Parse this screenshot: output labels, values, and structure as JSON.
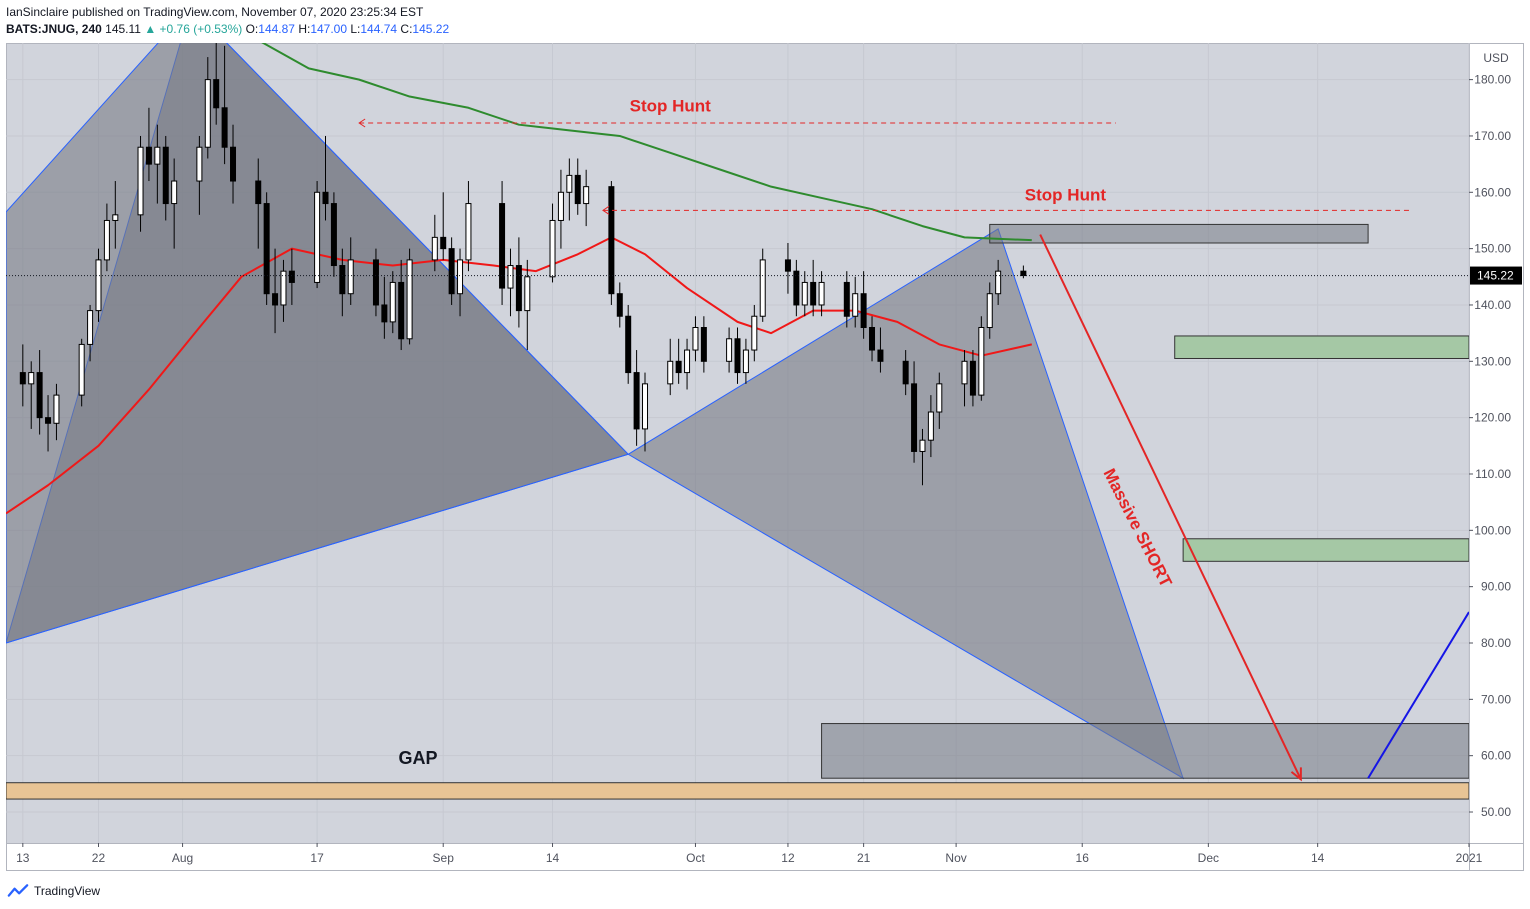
{
  "header": {
    "publisher": "IanSinclaire published on TradingView.com, November 07, 2020 23:25:34 EST",
    "symbol": "BATS:JNUG, 240",
    "last": "145.11",
    "change": "▲ +0.76 (+0.53%)",
    "o_label": "O:",
    "o_value": "144.87",
    "h_label": "H:",
    "h_value": "147.00",
    "l_label": "L:",
    "l_value": "144.74",
    "c_label": "C:",
    "c_value": "145.22"
  },
  "footer": {
    "brand": "TradingView"
  },
  "colors": {
    "background": "#d1d4dc",
    "pattern_fill": "#787b86",
    "pattern_edge": "#2962ff",
    "ma_fast": "#f01818",
    "ma_slow": "#2e8b2e",
    "zone_green": "#a5c8a5",
    "zone_orange": "#e8c495",
    "annotation_red": "#e32626",
    "projection_blue": "#1515e6"
  },
  "chart_data": {
    "type": "candlestick",
    "currency": "USD",
    "ylim": [
      44.5,
      186.5
    ],
    "y_ticks": [
      {
        "value": 180,
        "label": "180.00"
      },
      {
        "value": 170,
        "label": "170.00"
      },
      {
        "value": 160,
        "label": "160.00"
      },
      {
        "value": 150,
        "label": "150.00"
      },
      {
        "value": 140,
        "label": "140.00"
      },
      {
        "value": 130,
        "label": "130.00"
      },
      {
        "value": 120,
        "label": "120.00"
      },
      {
        "value": 110,
        "label": "110.00"
      },
      {
        "value": 100,
        "label": "100.00"
      },
      {
        "value": 90,
        "label": "90.00"
      },
      {
        "value": 80,
        "label": "80.00"
      },
      {
        "value": 70,
        "label": "70.00"
      },
      {
        "value": 60,
        "label": "60.00"
      },
      {
        "value": 50,
        "label": "50.00"
      }
    ],
    "x_domain": [
      "2020-07-11",
      "2021-01-01"
    ],
    "x_ticks": [
      {
        "date": "2020-07-13",
        "label": "13"
      },
      {
        "date": "2020-07-22",
        "label": "22"
      },
      {
        "date": "2020-08-01",
        "label": "Aug"
      },
      {
        "date": "2020-08-17",
        "label": "17"
      },
      {
        "date": "2020-09-01",
        "label": "Sep"
      },
      {
        "date": "2020-09-14",
        "label": "14"
      },
      {
        "date": "2020-10-01",
        "label": "Oct"
      },
      {
        "date": "2020-10-12",
        "label": "12"
      },
      {
        "date": "2020-10-21",
        "label": "21"
      },
      {
        "date": "2020-11-01",
        "label": "Nov"
      },
      {
        "date": "2020-11-16",
        "label": "16"
      },
      {
        "date": "2020-12-01",
        "label": "Dec"
      },
      {
        "date": "2020-12-14",
        "label": "14"
      },
      {
        "date": "2021-01-01",
        "label": "2021"
      }
    ],
    "last_price": {
      "value": 145.22,
      "label": "145.22"
    },
    "candles_ohlc": [
      [
        "2020-07-13",
        128,
        133,
        122,
        126
      ],
      [
        "2020-07-14",
        126,
        130,
        118,
        128
      ],
      [
        "2020-07-15",
        128,
        132,
        117,
        120
      ],
      [
        "2020-07-16",
        120,
        124,
        114,
        119
      ],
      [
        "2020-07-17",
        119,
        126,
        116,
        124
      ],
      [
        "2020-07-20",
        124,
        134,
        122,
        133
      ],
      [
        "2020-07-21",
        133,
        140,
        130,
        139
      ],
      [
        "2020-07-22",
        139,
        150,
        137,
        148
      ],
      [
        "2020-07-23",
        148,
        158,
        146,
        155
      ],
      [
        "2020-07-24",
        155,
        162,
        150,
        156
      ],
      [
        "2020-07-27",
        156,
        170,
        153,
        168
      ],
      [
        "2020-07-28",
        168,
        175,
        162,
        165
      ],
      [
        "2020-07-29",
        165,
        172,
        158,
        168
      ],
      [
        "2020-07-30",
        168,
        170,
        155,
        158
      ],
      [
        "2020-07-31",
        158,
        166,
        150,
        162
      ],
      [
        "2020-08-03",
        162,
        170,
        156,
        168
      ],
      [
        "2020-08-04",
        168,
        184,
        166,
        180
      ],
      [
        "2020-08-05",
        180,
        190,
        172,
        175
      ],
      [
        "2020-08-06",
        175,
        186,
        165,
        168
      ],
      [
        "2020-08-07",
        168,
        172,
        158,
        162
      ],
      [
        "2020-08-10",
        162,
        166,
        150,
        158
      ],
      [
        "2020-08-11",
        158,
        160,
        140,
        142
      ],
      [
        "2020-08-12",
        142,
        150,
        135,
        140
      ],
      [
        "2020-08-13",
        140,
        148,
        137,
        146
      ],
      [
        "2020-08-14",
        146,
        150,
        140,
        144
      ],
      [
        "2020-08-17",
        144,
        162,
        143,
        160
      ],
      [
        "2020-08-18",
        160,
        170,
        155,
        158
      ],
      [
        "2020-08-19",
        158,
        160,
        145,
        147
      ],
      [
        "2020-08-20",
        147,
        150,
        138,
        142
      ],
      [
        "2020-08-21",
        142,
        152,
        140,
        148
      ],
      [
        "2020-08-24",
        148,
        150,
        138,
        140
      ],
      [
        "2020-08-25",
        140,
        145,
        134,
        137
      ],
      [
        "2020-08-26",
        137,
        146,
        135,
        144
      ],
      [
        "2020-08-27",
        144,
        148,
        132,
        134
      ],
      [
        "2020-08-28",
        134,
        150,
        133,
        148
      ],
      [
        "2020-08-31",
        148,
        156,
        146,
        152
      ],
      [
        "2020-09-01",
        152,
        160,
        148,
        150
      ],
      [
        "2020-09-02",
        150,
        152,
        140,
        142
      ],
      [
        "2020-09-03",
        142,
        150,
        138,
        148
      ],
      [
        "2020-09-04",
        148,
        162,
        146,
        158
      ],
      [
        "2020-09-08",
        158,
        162,
        140,
        143
      ],
      [
        "2020-09-09",
        143,
        150,
        138,
        147
      ],
      [
        "2020-09-10",
        147,
        152,
        136,
        139
      ],
      [
        "2020-09-11",
        139,
        148,
        132,
        145
      ],
      [
        "2020-09-14",
        145,
        158,
        144,
        155
      ],
      [
        "2020-09-15",
        155,
        164,
        150,
        160
      ],
      [
        "2020-09-16",
        160,
        166,
        155,
        163
      ],
      [
        "2020-09-17",
        163,
        166,
        156,
        158
      ],
      [
        "2020-09-18",
        158,
        164,
        154,
        161
      ],
      [
        "2020-09-21",
        161,
        162,
        140,
        142
      ],
      [
        "2020-09-22",
        142,
        144,
        136,
        138
      ],
      [
        "2020-09-23",
        138,
        140,
        126,
        128
      ],
      [
        "2020-09-24",
        128,
        132,
        115,
        118
      ],
      [
        "2020-09-25",
        118,
        128,
        114,
        126
      ],
      [
        "2020-09-28",
        126,
        134,
        124,
        130
      ],
      [
        "2020-09-29",
        130,
        134,
        126,
        128
      ],
      [
        "2020-09-30",
        128,
        134,
        125,
        132
      ],
      [
        "2020-10-01",
        132,
        138,
        130,
        136
      ],
      [
        "2020-10-02",
        136,
        138,
        128,
        130
      ],
      [
        "2020-10-05",
        130,
        136,
        128,
        134
      ],
      [
        "2020-10-06",
        134,
        136,
        126,
        128
      ],
      [
        "2020-10-07",
        128,
        134,
        126,
        132
      ],
      [
        "2020-10-08",
        132,
        140,
        130,
        138
      ],
      [
        "2020-10-09",
        138,
        150,
        137,
        148
      ],
      [
        "2020-10-12",
        148,
        151,
        142,
        146
      ],
      [
        "2020-10-13",
        146,
        148,
        138,
        140
      ],
      [
        "2020-10-14",
        140,
        146,
        138,
        144
      ],
      [
        "2020-10-15",
        144,
        148,
        138,
        140
      ],
      [
        "2020-10-16",
        140,
        146,
        138,
        144
      ],
      [
        "2020-10-19",
        144,
        146,
        136,
        138
      ],
      [
        "2020-10-20",
        138,
        145,
        136,
        142
      ],
      [
        "2020-10-21",
        142,
        146,
        134,
        136
      ],
      [
        "2020-10-22",
        136,
        138,
        130,
        132
      ],
      [
        "2020-10-23",
        132,
        136,
        128,
        130
      ],
      [
        "2020-10-26",
        130,
        132,
        124,
        126
      ],
      [
        "2020-10-27",
        126,
        130,
        112,
        114
      ],
      [
        "2020-10-28",
        114,
        118,
        108,
        116
      ],
      [
        "2020-10-29",
        116,
        124,
        113,
        121
      ],
      [
        "2020-10-30",
        121,
        128,
        118,
        126
      ],
      [
        "2020-11-02",
        126,
        132,
        122,
        130
      ],
      [
        "2020-11-03",
        130,
        132,
        122,
        124
      ],
      [
        "2020-11-04",
        124,
        138,
        123,
        136
      ],
      [
        "2020-11-05",
        136,
        144,
        134,
        142
      ],
      [
        "2020-11-06",
        142,
        148,
        140,
        146
      ],
      [
        "2020-11-09",
        146,
        147,
        144.74,
        145.22
      ]
    ],
    "series": [
      {
        "name": "",
        "kind": "moving-average-fast",
        "points": [
          [
            "2020-07-11",
            103
          ],
          [
            "2020-07-16",
            108
          ],
          [
            "2020-07-22",
            115
          ],
          [
            "2020-07-28",
            125
          ],
          [
            "2020-08-03",
            136
          ],
          [
            "2020-08-08",
            145
          ],
          [
            "2020-08-14",
            150
          ],
          [
            "2020-08-20",
            148
          ],
          [
            "2020-08-26",
            147
          ],
          [
            "2020-09-01",
            148
          ],
          [
            "2020-09-07",
            147
          ],
          [
            "2020-09-12",
            146
          ],
          [
            "2020-09-17",
            149
          ],
          [
            "2020-09-21",
            152
          ],
          [
            "2020-09-25",
            149
          ],
          [
            "2020-09-30",
            143
          ],
          [
            "2020-10-06",
            137
          ],
          [
            "2020-10-10",
            135
          ],
          [
            "2020-10-15",
            139
          ],
          [
            "2020-10-20",
            139
          ],
          [
            "2020-10-25",
            137
          ],
          [
            "2020-10-30",
            133
          ],
          [
            "2020-11-04",
            131
          ],
          [
            "2020-11-10",
            133
          ]
        ]
      },
      {
        "name": "",
        "kind": "moving-average-slow",
        "points": [
          [
            "2020-08-10",
            187
          ],
          [
            "2020-08-16",
            182
          ],
          [
            "2020-08-22",
            180
          ],
          [
            "2020-08-28",
            177
          ],
          [
            "2020-09-04",
            175
          ],
          [
            "2020-09-10",
            172
          ],
          [
            "2020-09-16",
            171
          ],
          [
            "2020-09-22",
            170
          ],
          [
            "2020-09-28",
            167
          ],
          [
            "2020-10-04",
            164
          ],
          [
            "2020-10-10",
            161
          ],
          [
            "2020-10-16",
            159
          ],
          [
            "2020-10-22",
            157
          ],
          [
            "2020-10-28",
            154
          ],
          [
            "2020-11-02",
            152
          ],
          [
            "2020-11-10",
            151.5
          ]
        ]
      }
    ],
    "harmonic_patterns": [
      {
        "points": [
          [
            "2020-07-11",
            80
          ],
          [
            "2020-08-02",
            193
          ],
          [
            "2020-09-23",
            113.5
          ]
        ],
        "fill": "dark"
      },
      {
        "points": [
          [
            "2020-07-11",
            156.5
          ],
          [
            "2020-08-02",
            193
          ],
          [
            "2020-09-23",
            113.5
          ],
          [
            "2020-07-11",
            80
          ]
        ],
        "fill": "dark"
      },
      {
        "points": [
          [
            "2020-09-23",
            113.5
          ],
          [
            "2020-11-06",
            153.5
          ],
          [
            "2020-11-28",
            56
          ]
        ],
        "fill": "dark"
      }
    ],
    "zones": [
      {
        "kind": "supply",
        "color": "gray",
        "x": [
          "2020-11-05",
          "2020-12-20"
        ],
        "y": [
          151,
          154.3
        ]
      },
      {
        "kind": "demand",
        "color": "green",
        "x": [
          "2020-11-27",
          "2021-01-01"
        ],
        "y": [
          130.5,
          134.5
        ]
      },
      {
        "kind": "demand",
        "color": "green",
        "x": [
          "2020-11-28",
          "2021-01-01"
        ],
        "y": [
          94.5,
          98.5
        ]
      },
      {
        "kind": "target",
        "color": "gray",
        "x": [
          "2020-10-16",
          "2021-01-01"
        ],
        "y": [
          56,
          65.7
        ]
      },
      {
        "kind": "gap",
        "color": "orange",
        "x": [
          "2020-07-11",
          "2021-01-01"
        ],
        "y": [
          52.3,
          55.2
        ]
      }
    ],
    "annotations": [
      {
        "text": "Stop Hunt",
        "date": "2020-09-28",
        "value": 174.3
      },
      {
        "text": "Stop Hunt",
        "date": "2020-11-14",
        "value": 158.5
      },
      {
        "text": "Massive SHORT",
        "date": "2020-11-22",
        "value": 100,
        "rotation": 63
      },
      {
        "text": "GAP",
        "date": "2020-08-29",
        "value": 58.5
      }
    ],
    "dashed_levels": [
      {
        "value": 172.3,
        "x": [
          "2020-08-22",
          "2020-11-20"
        ]
      },
      {
        "value": 156.8,
        "x": [
          "2020-09-20",
          "2020-12-25"
        ]
      }
    ],
    "arrows": [
      {
        "from": [
          "2020-11-11",
          152.5
        ],
        "to": [
          "2020-12-12",
          55.8
        ]
      }
    ],
    "projection_line": {
      "from": [
        "2020-12-20",
        56
      ],
      "to": [
        "2021-01-01",
        85.5
      ]
    }
  }
}
